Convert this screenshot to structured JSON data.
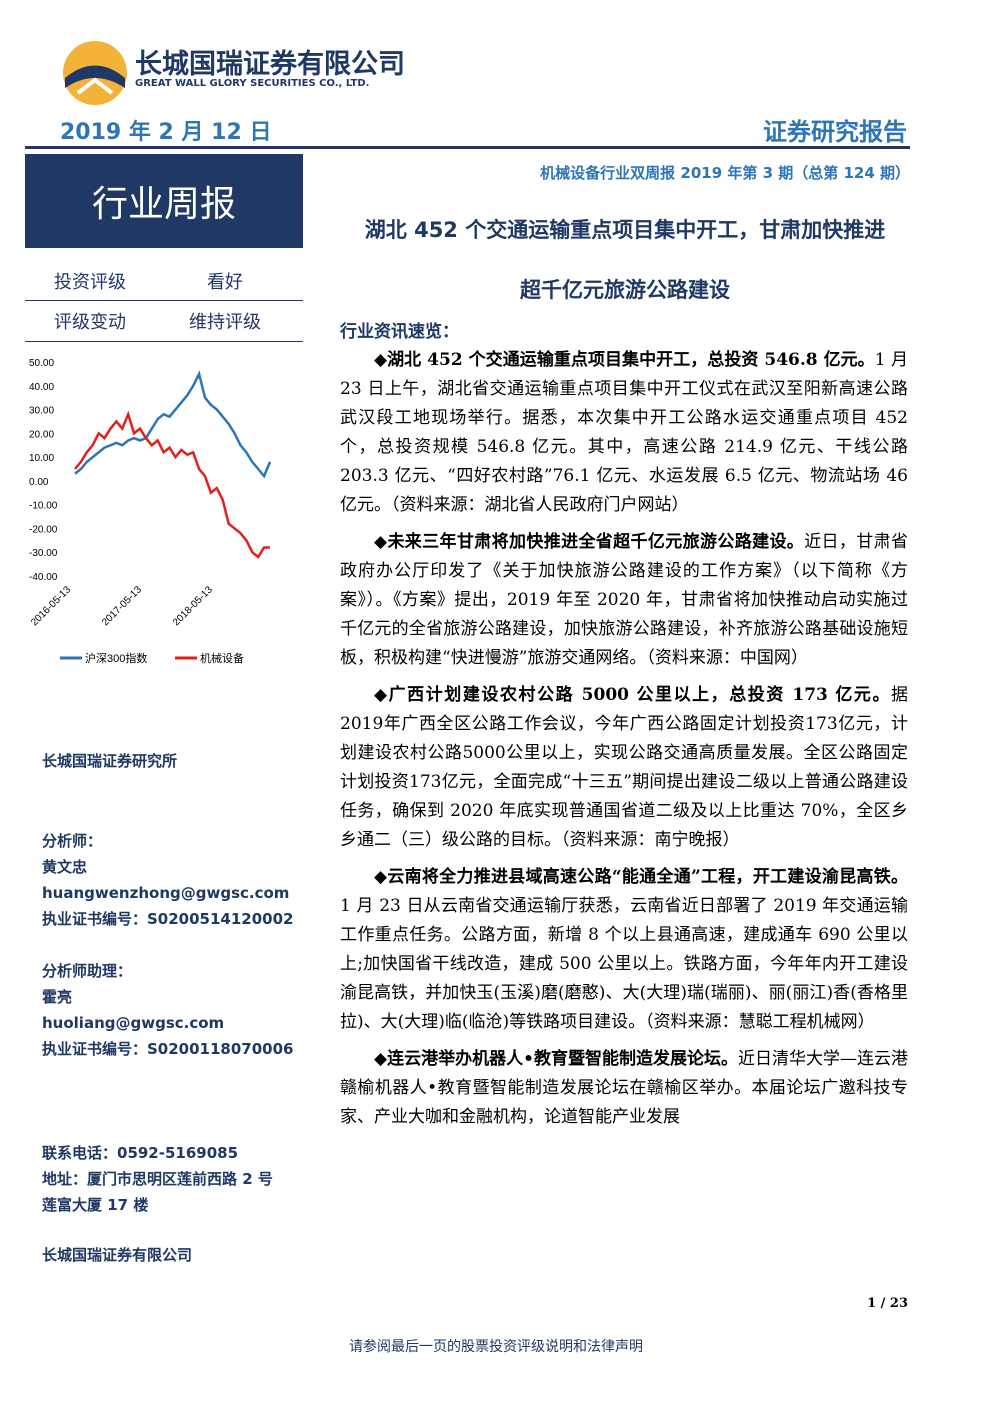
{
  "header": {
    "company_cn": "长城国瑞证券有限公司",
    "company_en": "GREAT WALL GLORY SECURITIES CO., LTD.",
    "date": "2019 年 2 月 12 日",
    "report_type": "证券研究报告"
  },
  "sidebar": {
    "label": "行业周报",
    "rating": [
      [
        "投资评级",
        "看好"
      ],
      [
        "评级变动",
        "维持评级"
      ]
    ],
    "institute": "长城国瑞证券研究所",
    "analyst_label": "分析师：",
    "analyst_name": "黄文忠",
    "analyst_email": "huangwenzhong@gwgsc.com",
    "analyst_cert": "执业证书编号：S0200514120002",
    "assistant_label": "分析师助理：",
    "assistant_name": "霍亮",
    "assistant_email": "huoliang@gwgsc.com",
    "assistant_cert": "执业证书编号：S0200118070006",
    "phone": "联系电话：0592-5169085",
    "address": [
      "地址：厦门市思明区莲前西路 2 号",
      "莲富大厦 17 楼"
    ],
    "company": "长城国瑞证券有限公司"
  },
  "chart_data": {
    "type": "line",
    "categories": [
      "2016-05-13",
      null,
      null,
      null,
      null,
      null,
      null,
      null,
      null,
      null,
      null,
      null,
      "2017-05-13",
      null,
      null,
      null,
      null,
      null,
      null,
      null,
      null,
      null,
      null,
      null,
      "2018-05-13",
      null,
      null,
      null,
      null,
      null,
      null,
      null,
      null,
      null
    ],
    "series": [
      {
        "name": "沪深300指数",
        "color": "#2e75b6",
        "values": [
          3,
          5,
          8,
          10,
          12,
          14,
          15,
          16,
          15,
          17,
          18,
          17,
          18,
          22,
          26,
          28,
          27,
          30,
          33,
          36,
          40,
          45,
          35,
          32,
          30,
          27,
          24,
          20,
          15,
          12,
          8,
          5,
          2,
          8
        ]
      },
      {
        "name": "机械设备",
        "color": "#e0201b",
        "values": [
          5,
          8,
          12,
          15,
          20,
          18,
          22,
          25,
          22,
          28,
          20,
          22,
          18,
          15,
          17,
          12,
          14,
          10,
          13,
          11,
          12,
          5,
          2,
          -5,
          -3,
          -8,
          -18,
          -20,
          -22,
          -25,
          -30,
          -32,
          -28,
          -28
        ]
      }
    ],
    "ylim": [
      -40,
      50
    ],
    "yticks": [
      {
        "value": 50,
        "label": "50.00"
      },
      {
        "value": 40,
        "label": "40.00"
      },
      {
        "value": 30,
        "label": "30.00"
      },
      {
        "value": 20,
        "label": "20.00"
      },
      {
        "value": 10,
        "label": "10.00"
      },
      {
        "value": 0,
        "label": "0.00"
      },
      {
        "value": -10,
        "label": "-10.00"
      },
      {
        "value": -20,
        "label": "-20.00"
      },
      {
        "value": -30,
        "label": "-30.00"
      },
      {
        "value": -40,
        "label": "-40.00"
      }
    ]
  },
  "article": {
    "series_title": "机械设备行业双周报 2019 年第 3 期（总第 124 期）",
    "title": [
      "湖北 452 个交通运输重点项目集中开工，甘肃加快推进",
      "超千亿元旅游公路建设"
    ],
    "section": "行业资讯速览：",
    "items": [
      {
        "lead": "◆湖北 452 个交通运输重点项目集中开工，总投资 546.8 亿元。",
        "body": "1 月 23 日上午，湖北省交通运输重点项目集中开工仪式在武汉至阳新高速公路武汉段工地现场举行。据悉，本次集中开工公路水运交通重点项目 452 个，总投资规模 546.8 亿元。其中，高速公路 214.9 亿元、干线公路 203.3 亿元、“四好农村路”76.1 亿元、水运发展 6.5 亿元、物流站场 46 亿元。（资料来源：湖北省人民政府门户网站）"
      },
      {
        "lead": "◆未来三年甘肃将加快推进全省超千亿元旅游公路建设。",
        "body": "近日，甘肃省政府办公厅印发了《关于加快旅游公路建设的工作方案》（以下简称《方案》）。《方案》提出，2019 年至 2020 年，甘肃省将加快推动启动实施过千亿元的全省旅游公路建设，加快旅游公路建设，补齐旅游公路基础设施短板，积极构建“快进慢游”旅游交通网络。（资料来源：中国网）"
      },
      {
        "lead": "◆广西计划建设农村公路 5000 公里以上，总投资 173 亿元。",
        "body": "据2019年广西全区公路工作会议，今年广西公路固定计划投资173亿元，计划建设农村公路5000公里以上，实现公路交通高质量发展。全区公路固定计划投资173亿元，全面完成“十三五”期间提出建设二级以上普通公路建设任务，确保到 2020 年底实现普通国省道二级及以上比重达 70%，全区乡乡通二（三）级公路的目标。（资料来源：南宁晚报）"
      },
      {
        "lead": "◆云南将全力推进县域高速公路“能通全通”工程，开工建设渝昆高铁。",
        "body": "1 月 23 日从云南省交通运输厅获悉，云南省近日部署了 2019 年交通运输工作重点任务。公路方面，新增 8 个以上县通高速，建成通车 690 公里以上;加快国省干线改造，建成 500 公里以上。铁路方面，今年年内开工建设渝昆高铁，并加快玉(玉溪)磨(磨憨)、大(大理)瑞(瑞丽)、丽(丽江)香(香格里拉)、大(大理)临(临沧)等铁路项目建设。（资料来源：慧聪工程机械网）"
      },
      {
        "lead": "◆连云港举办机器人•教育暨智能制造发展论坛。",
        "body": "近日清华大学—连云港赣榆机器人•教育暨智能制造发展论坛在赣榆区举办。本届论坛广邀科技专家、产业大咖和金融机构，论道智能产业发展"
      }
    ]
  },
  "footer": {
    "page": "1 / 23",
    "disclaimer": "请参阅最后一页的股票投资评级说明和法律声明"
  }
}
